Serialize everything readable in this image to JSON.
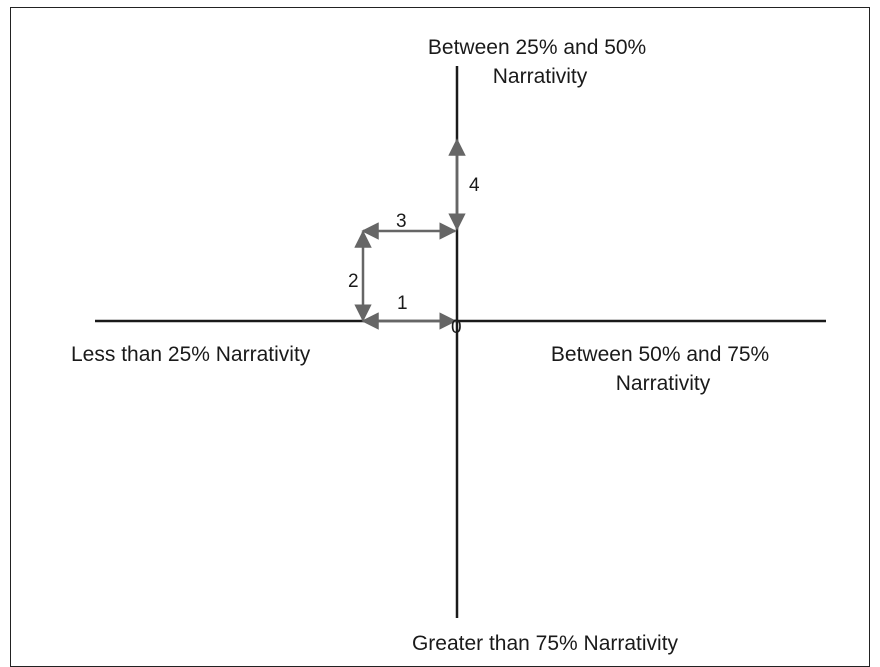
{
  "diagram": {
    "quadrants": {
      "top": [
        "Between 25% and 50%",
        "Narrativity"
      ],
      "left": [
        "Less than 25% Narrativity"
      ],
      "right": [
        "Between 50% and 75%",
        "Narrativity"
      ],
      "bottom": [
        "Greater than 75% Narrativity"
      ]
    },
    "origin_label": "0",
    "steps": [
      {
        "label": "1",
        "direction": "left"
      },
      {
        "label": "2",
        "direction": "up"
      },
      {
        "label": "3",
        "direction": "right"
      },
      {
        "label": "4",
        "direction": "up"
      }
    ],
    "colors": {
      "axis": "#1a1a1a",
      "arrow": "#666666",
      "text": "#1a1a1a"
    }
  }
}
